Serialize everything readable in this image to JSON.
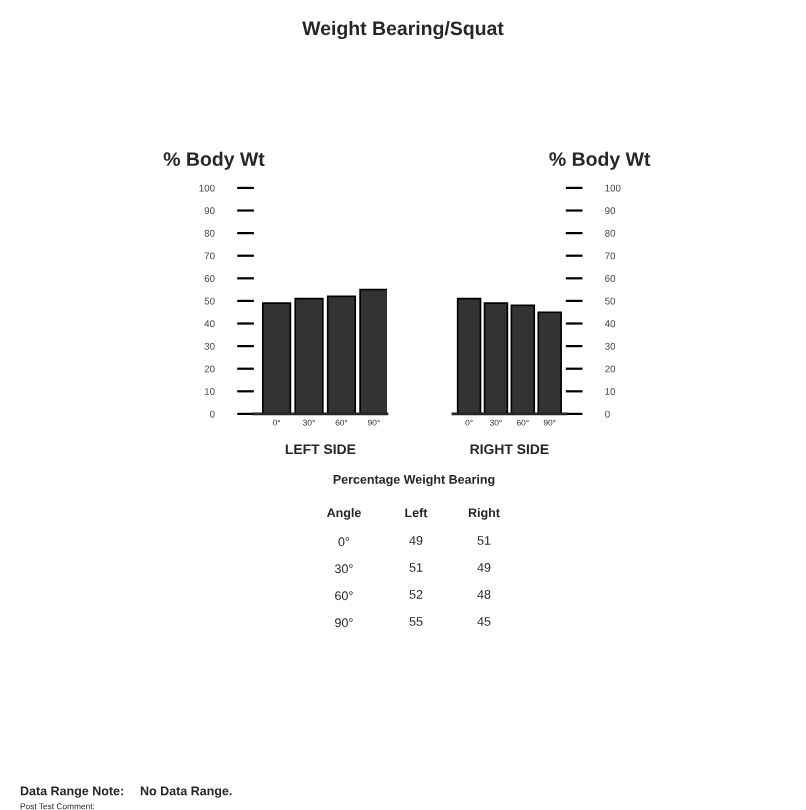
{
  "chart_data": [
    {
      "type": "bar",
      "title": "Weight Bearing/Squat",
      "ylabel": "% Body Wt",
      "xlabel": "LEFT SIDE",
      "categories": [
        "0°",
        "30°",
        "60°",
        "90°"
      ],
      "series": [
        {
          "color": "#333333",
          "values": [
            49,
            51,
            52,
            55
          ]
        }
      ],
      "ylim": [
        0,
        100
      ],
      "yticks": [
        0,
        10,
        20,
        30,
        40,
        50,
        60,
        70,
        80,
        90,
        100
      ],
      "grid": false,
      "legend": false,
      "annotations": [
        "Data Range Note:",
        "No Data Range.",
        "Post Test Comment:"
      ]
    },
    {
      "type": "bar",
      "ylabel": "% Body Wt",
      "xlabel": "RIGHT SIDE",
      "categories": [
        "0°",
        "30°",
        "60°",
        "90°"
      ],
      "series": [
        {
          "color": "#333333",
          "values": [
            51,
            49,
            48,
            45
          ]
        }
      ],
      "ylim": [
        0,
        100
      ],
      "yticks": [
        0,
        10,
        20,
        30,
        40,
        50,
        60,
        70,
        80,
        90,
        100
      ],
      "grid": false,
      "legend": false
    },
    {
      "type": "heatmap",
      "title": "Percentage Weight Bearing",
      "ylabel": "Angle",
      "categories": [
        "Left",
        "Right"
      ],
      "y_categories": [
        "0°",
        "30°",
        "60°",
        "90°"
      ],
      "cells": [
        [
          49,
          51
        ],
        [
          51,
          49
        ],
        [
          52,
          48
        ],
        [
          55,
          45
        ]
      ],
      "data_labels": true
    }
  ]
}
